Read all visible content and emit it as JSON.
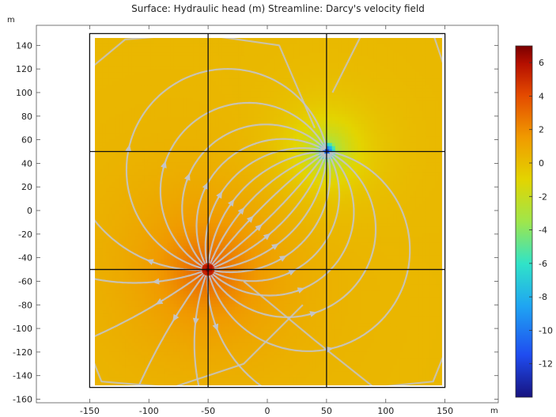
{
  "chart_data": {
    "type": "heatmap",
    "title": "Surface: Hydraulic head (m)  Streamline: Darcy's velocity field",
    "xunit": "m",
    "yunit": "m",
    "xlim": [
      -195,
      195
    ],
    "ylim": [
      -163,
      157
    ],
    "xticks": [
      -150,
      -100,
      -50,
      0,
      50,
      100,
      150
    ],
    "yticks": [
      -160,
      -140,
      -120,
      -100,
      -80,
      -60,
      -40,
      -20,
      0,
      20,
      40,
      60,
      80,
      100,
      120,
      140
    ],
    "domain": {
      "x": [
        -150,
        150
      ],
      "y": [
        -150,
        150
      ]
    },
    "grid_lines": {
      "x": [
        -50,
        50
      ],
      "y": [
        -50,
        50
      ]
    },
    "wells": [
      {
        "x": -50,
        "y": -50,
        "head": 7,
        "role": "injection"
      },
      {
        "x": 50,
        "y": 50,
        "head": -14,
        "role": "extraction"
      }
    ],
    "background_head": 0,
    "colorbar": {
      "range": [
        -14,
        7
      ],
      "ticks": [
        4,
        2,
        0,
        -2,
        -4,
        -6,
        -8,
        -10,
        -12,
        6
      ],
      "colormap": [
        "#17137f",
        "#1f4cf0",
        "#1fa5f2",
        "#30e3c8",
        "#9fe64b",
        "#e3d400",
        "#f09a00",
        "#e44a00",
        "#b50f00",
        "#7a0000"
      ]
    },
    "streamline_color": "#c4c4c4",
    "grid_line_color": "#111111"
  }
}
